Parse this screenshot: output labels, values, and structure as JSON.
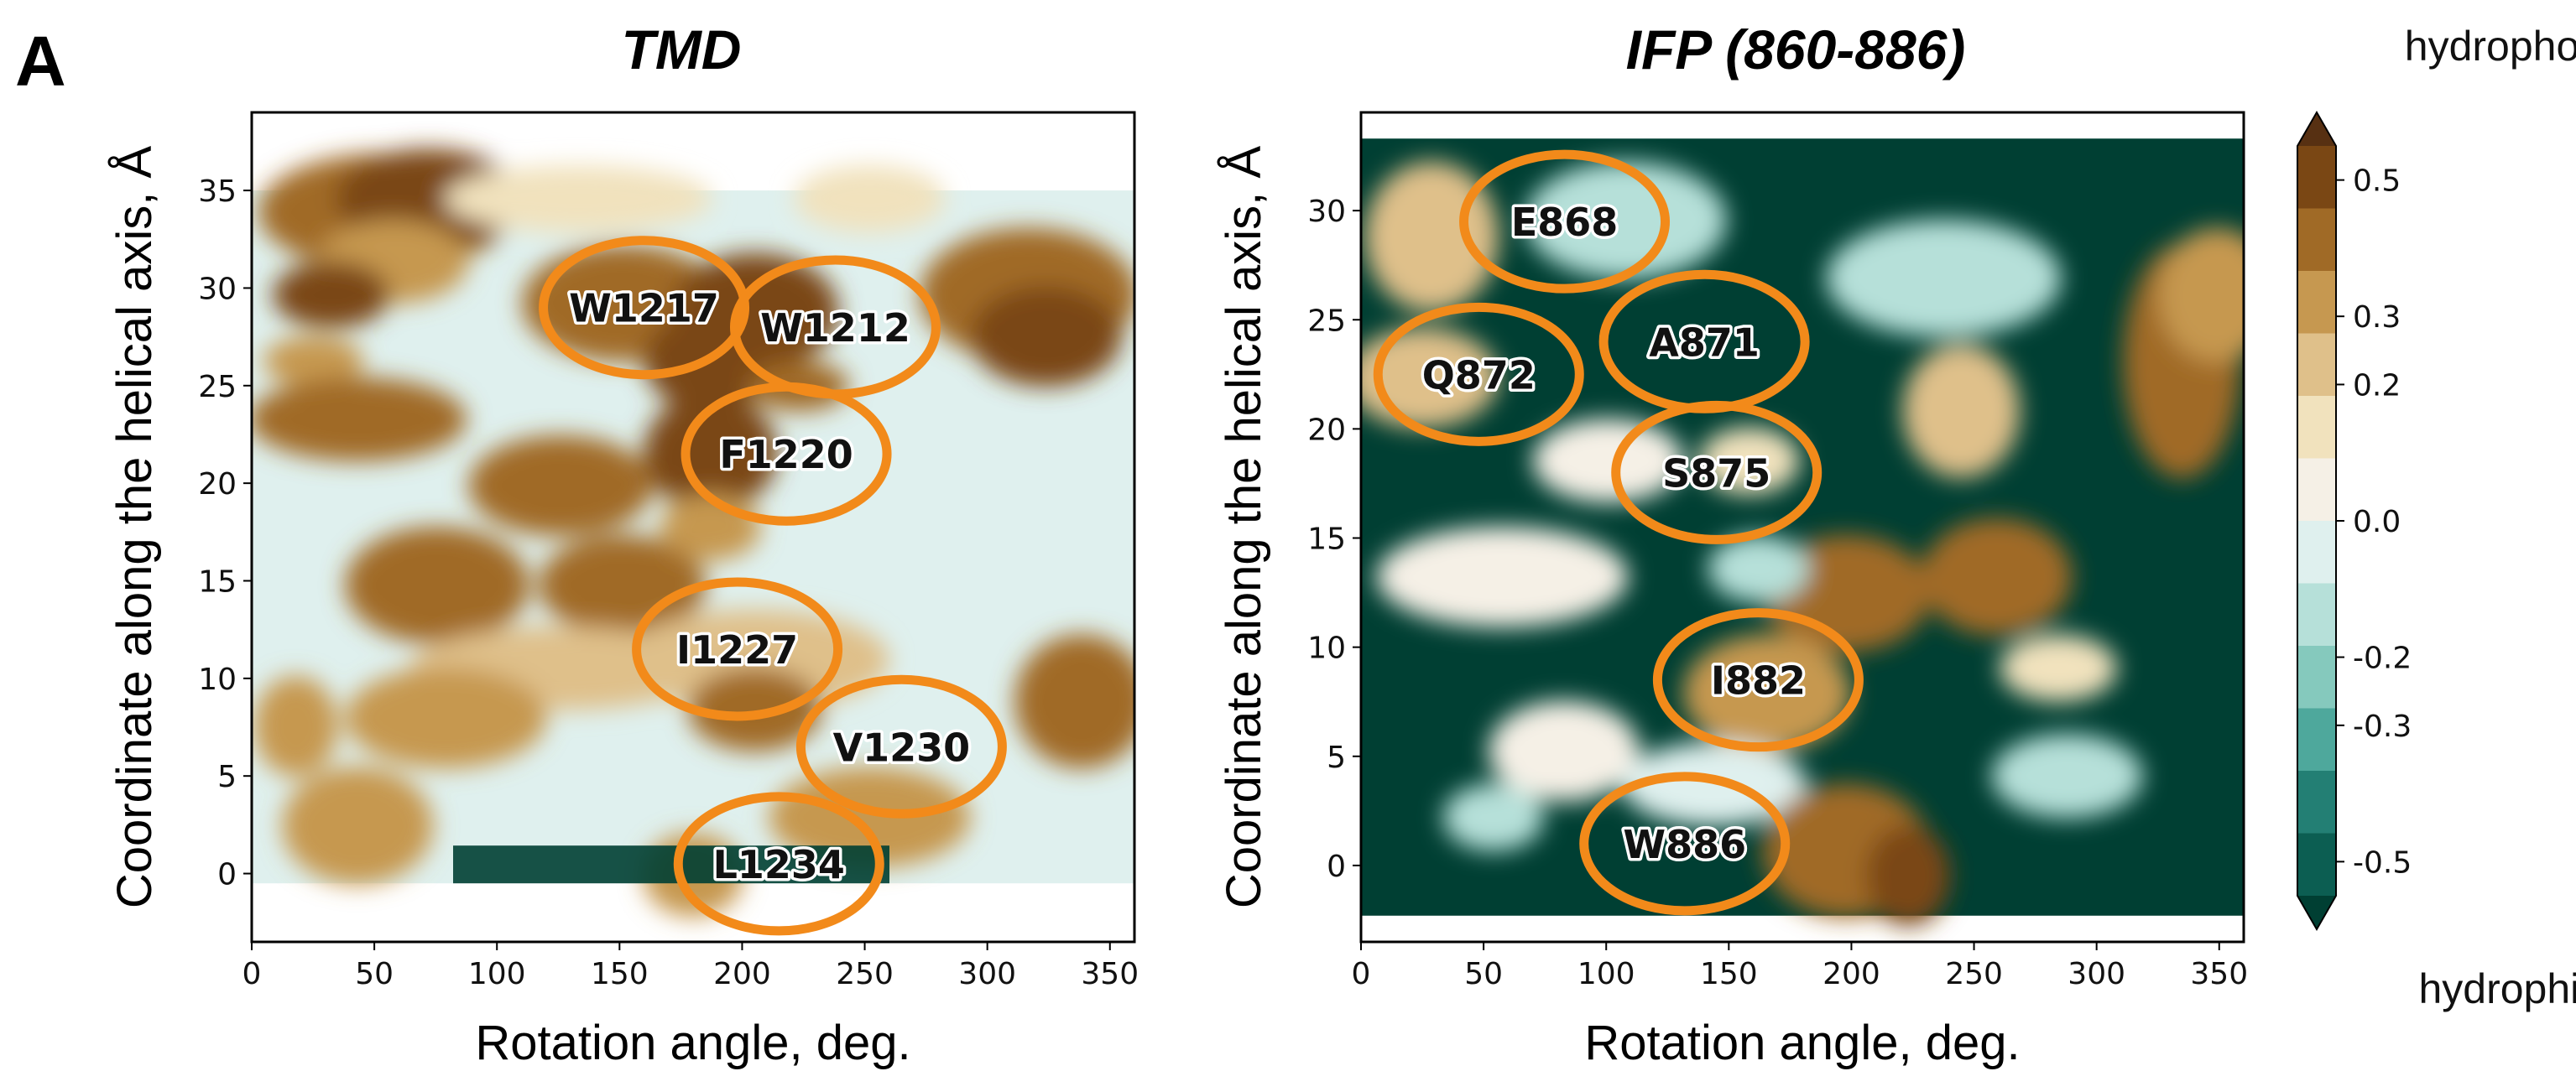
{
  "panel_letter": "A",
  "colors": {
    "annotation_ring": "#f28a1a",
    "hydrophobic_strong": "#5a3110",
    "neutral": "#f5f0e6",
    "hydrophilic_strong": "#003f33"
  },
  "chart_data": [
    {
      "type": "heatmap",
      "title": "TMD",
      "xlabel": "Rotation angle, deg.",
      "ylabel": "Coordinate along the helical axis, Å",
      "xlim": [
        0,
        360
      ],
      "ylim": [
        -3.5,
        39
      ],
      "xticks": [
        "0",
        "50",
        "100",
        "150",
        "200",
        "250",
        "300",
        "350"
      ],
      "yticks": [
        "0",
        "5",
        "10",
        "15",
        "20",
        "25",
        "30",
        "35"
      ],
      "data_extent": {
        "y_min": -0.5,
        "y_max": 35
      },
      "data_extent_note_hidden": true,
      "annotations": [
        {
          "label": "W1217",
          "x": 160,
          "y": 29
        },
        {
          "label": "W1212",
          "x": 238,
          "y": 28
        },
        {
          "label": "F1220",
          "x": 218,
          "y": 21.5
        },
        {
          "label": "I1227",
          "x": 198,
          "y": 11.5
        },
        {
          "label": "V1230",
          "x": 265,
          "y": 6.5
        },
        {
          "label": "L1234",
          "x": 215,
          "y": 0.5
        }
      ]
    },
    {
      "type": "heatmap",
      "title": "IFP (860-886)",
      "xlabel": "Rotation angle, deg.",
      "ylabel": "Coordinate along the helical axis, Å",
      "xlim": [
        0,
        360
      ],
      "ylim": [
        -3.5,
        34.5
      ],
      "xticks": [
        "0",
        "50",
        "100",
        "150",
        "200",
        "250",
        "300",
        "350"
      ],
      "yticks": [
        "0",
        "5",
        "10",
        "15",
        "20",
        "25",
        "30"
      ],
      "annotations": [
        {
          "label": "E868",
          "x": 83,
          "y": 29.5
        },
        {
          "label": "A871",
          "x": 140,
          "y": 24
        },
        {
          "label": "Q872",
          "x": 48,
          "y": 22.5
        },
        {
          "label": "S875",
          "x": 145,
          "y": 18
        },
        {
          "label": "I882",
          "x": 162,
          "y": 8.5
        },
        {
          "label": "W886",
          "x": 132,
          "y": 1
        }
      ]
    }
  ],
  "colorbar": {
    "top_label": "hydrophobic",
    "bottom_label": "hydrophilic",
    "ticks": [
      "0.5",
      "0.3",
      "0.2",
      "0.0",
      "-0.2",
      "-0.3",
      "-0.5"
    ],
    "tick_values": [
      0.5,
      0.3,
      0.2,
      0.0,
      -0.2,
      -0.3,
      -0.5
    ],
    "levels": [
      {
        "color": "#573012"
      },
      {
        "color": "#7a4714"
      },
      {
        "color": "#a06a26"
      },
      {
        "color": "#c69850"
      },
      {
        "color": "#dfc08a"
      },
      {
        "color": "#f1e2bd"
      },
      {
        "color": "#f5f0e6"
      },
      {
        "color": "#dff0ee"
      },
      {
        "color": "#b6e0d9"
      },
      {
        "color": "#85c9bd"
      },
      {
        "color": "#4ea89c"
      },
      {
        "color": "#237f74"
      },
      {
        "color": "#0c5e52"
      },
      {
        "color": "#003f33"
      }
    ]
  }
}
